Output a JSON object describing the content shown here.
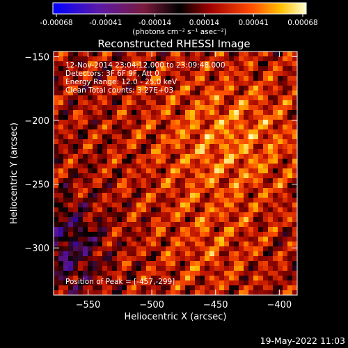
{
  "chart_data": {
    "type": "heatmap",
    "title": "Reconstructed RHESSI Image",
    "xlabel": "Heliocentric X (arcsec)",
    "ylabel": "Heliocentric Y (arcsec)",
    "xlim": [
      -577,
      -386
    ],
    "ylim": [
      -337,
      -146
    ],
    "x_ticks": [
      -550,
      -500,
      -450,
      -400
    ],
    "y_ticks": [
      -150,
      -200,
      -250,
      -300
    ],
    "colorbar": {
      "label": "(photons cm⁻² s⁻¹ asec⁻²)",
      "ticks": [
        "-0.00068",
        "-0.00041",
        "-0.00014",
        "0.00014",
        "0.00041",
        "0.00068"
      ],
      "range": [
        -0.00068,
        0.00068
      ]
    },
    "annotations": [
      "12-Nov-2014 23:04:12.000 to 23:09:48.000",
      "Detectors: 3F 6F 9F, Att 0",
      "Energy Range: 12.0 - 25.0 keV",
      "Clean     Total counts: 3.27E+03"
    ],
    "peak_label": "Position of Peak = [-457,-299]",
    "peak": [
      -457,
      -299
    ],
    "grid": false
  },
  "footer": {
    "timestamp": "19-May-2022 11:03"
  },
  "colors": {
    "background": "#000000",
    "axes": "#ffffff"
  }
}
